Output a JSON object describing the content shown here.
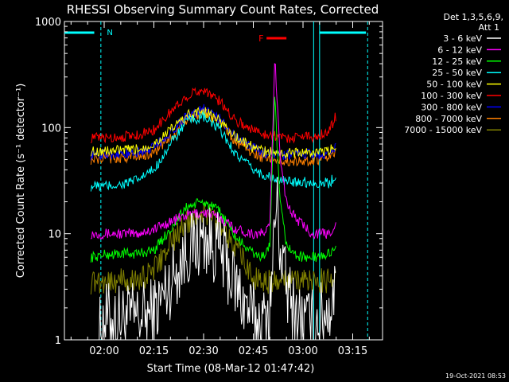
{
  "chart_data": {
    "type": "line",
    "title": "RHESSI Observing Summary Count Rates, Corrected",
    "xlabel": "Start Time (08-Mar-12 01:47:42)",
    "ylabel": "Corrected Count Rate (s⁻¹ detector⁻¹)",
    "yscale": "log",
    "ylim": [
      1,
      1000
    ],
    "xlim_minutes": [
      -12,
      28
    ],
    "y_ticks": [
      {
        "value": 1,
        "label": "1"
      },
      {
        "value": 10,
        "label": "10"
      },
      {
        "value": 100,
        "label": "100"
      },
      {
        "value": 1000,
        "label": "1000"
      }
    ],
    "x_ticks": [
      {
        "value": 0,
        "label": "02:00"
      },
      {
        "value": 15,
        "label": "02:15"
      },
      {
        "value": 30,
        "label": "02:30"
      },
      {
        "value": 45,
        "label": "02:45"
      },
      {
        "value": 60,
        "label": "03:00"
      },
      {
        "value": 75,
        "label": "03:15"
      }
    ],
    "grid": false,
    "legend_position": "right",
    "legend_header": [
      "Det 1,3,5,6,9,",
      "Att 1"
    ],
    "timestamp": "19-Oct-2021 08:53",
    "annotations": [
      {
        "label": "N",
        "color": "#00ffff"
      },
      {
        "label": "F",
        "color": "#ff0000"
      }
    ],
    "series": [
      {
        "name": "3 - 6 keV",
        "color": "#ffffff",
        "x": [
          -2,
          0,
          5,
          10,
          15,
          20,
          25,
          30,
          35,
          40,
          45,
          48,
          50,
          52,
          53,
          55,
          57,
          60,
          63,
          65,
          68,
          70
        ],
        "values": [
          1.0,
          1.6,
          1.6,
          1.6,
          1.8,
          3.5,
          7,
          9,
          7,
          3,
          1.6,
          1.4,
          2,
          22,
          8,
          3,
          2,
          1.5,
          1.4,
          1.6,
          2.0,
          3.0
        ]
      },
      {
        "name": "6 - 12 keV",
        "color": "#ff00ff",
        "x": [
          -4,
          0,
          5,
          10,
          15,
          20,
          25,
          30,
          35,
          40,
          45,
          48,
          50,
          51.5,
          53,
          55,
          57,
          60,
          63,
          65,
          68,
          70
        ],
        "values": [
          10,
          10,
          10,
          10,
          11,
          13,
          15,
          16,
          14,
          11,
          10,
          10,
          12,
          450,
          60,
          20,
          15,
          12,
          10,
          10,
          10,
          13
        ]
      },
      {
        "name": "12 - 25 keV",
        "color": "#00ff00",
        "x": [
          -4,
          0,
          5,
          10,
          15,
          20,
          25,
          30,
          35,
          40,
          45,
          48,
          50,
          51.5,
          53,
          55,
          57,
          60,
          63,
          65,
          68,
          70
        ],
        "values": [
          6,
          6.3,
          6.5,
          6.5,
          7,
          11,
          18,
          20,
          16,
          9,
          6.5,
          6,
          8,
          200,
          20,
          8,
          6.5,
          6,
          6,
          6,
          6.5,
          8
        ]
      },
      {
        "name": "25 - 50 keV",
        "color": "#00ffff",
        "x": [
          -4,
          0,
          5,
          10,
          15,
          20,
          25,
          30,
          35,
          40,
          45,
          48,
          50,
          52,
          55,
          57,
          60,
          63,
          65,
          68,
          70
        ],
        "values": [
          28,
          28,
          29,
          32,
          40,
          70,
          115,
          125,
          95,
          55,
          40,
          36,
          34,
          32,
          31,
          31,
          31,
          30,
          30,
          30,
          36
        ]
      },
      {
        "name": "50 - 100 keV",
        "color": "#ffff00",
        "x": [
          -4,
          0,
          5,
          10,
          15,
          20,
          25,
          30,
          35,
          40,
          45,
          48,
          50,
          52,
          55,
          57,
          60,
          63,
          65,
          68,
          70
        ],
        "values": [
          60,
          60,
          61,
          62,
          70,
          95,
          130,
          145,
          115,
          80,
          65,
          60,
          59,
          57,
          57,
          58,
          58,
          58,
          58,
          60,
          70
        ]
      },
      {
        "name": "100 - 300 keV",
        "color": "#ff0000",
        "x": [
          -4,
          0,
          5,
          10,
          15,
          20,
          25,
          30,
          35,
          40,
          45,
          48,
          50,
          52,
          55,
          57,
          60,
          63,
          65,
          68,
          70
        ],
        "values": [
          80,
          80,
          82,
          85,
          95,
          140,
          200,
          230,
          175,
          115,
          95,
          88,
          86,
          83,
          80,
          80,
          85,
          82,
          85,
          95,
          130
        ]
      },
      {
        "name": "300 - 800 keV",
        "color": "#0000ff",
        "x": [
          -4,
          0,
          5,
          10,
          15,
          20,
          25,
          30,
          35,
          40,
          45,
          48,
          50,
          52,
          55,
          57,
          60,
          63,
          65,
          68,
          70
        ],
        "values": [
          55,
          56,
          57,
          58,
          65,
          90,
          130,
          150,
          120,
          80,
          65,
          58,
          56,
          55,
          55,
          55,
          56,
          56,
          56,
          58,
          65
        ]
      },
      {
        "name": "800 - 7000 keV",
        "color": "#ff8000",
        "x": [
          -4,
          0,
          5,
          10,
          15,
          20,
          25,
          30,
          35,
          40,
          45,
          48,
          50,
          52,
          55,
          57,
          60,
          63,
          65,
          68,
          70
        ],
        "values": [
          50,
          51,
          52,
          53,
          58,
          80,
          120,
          140,
          110,
          72,
          58,
          52,
          50,
          49,
          48,
          48,
          49,
          49,
          50,
          52,
          58
        ]
      },
      {
        "name": "7000 - 15000 keV",
        "color": "#808000",
        "x": [
          -4,
          0,
          5,
          10,
          15,
          20,
          25,
          30,
          35,
          40,
          45,
          48,
          50,
          52,
          55,
          57,
          60,
          63,
          65,
          68,
          70
        ],
        "values": [
          3.5,
          3.6,
          3.6,
          3.6,
          4.5,
          8,
          13,
          16,
          13,
          7,
          4,
          3.5,
          3.5,
          3.5,
          3.5,
          3.5,
          3.6,
          3.6,
          3.6,
          3.6,
          4
        ]
      }
    ]
  }
}
